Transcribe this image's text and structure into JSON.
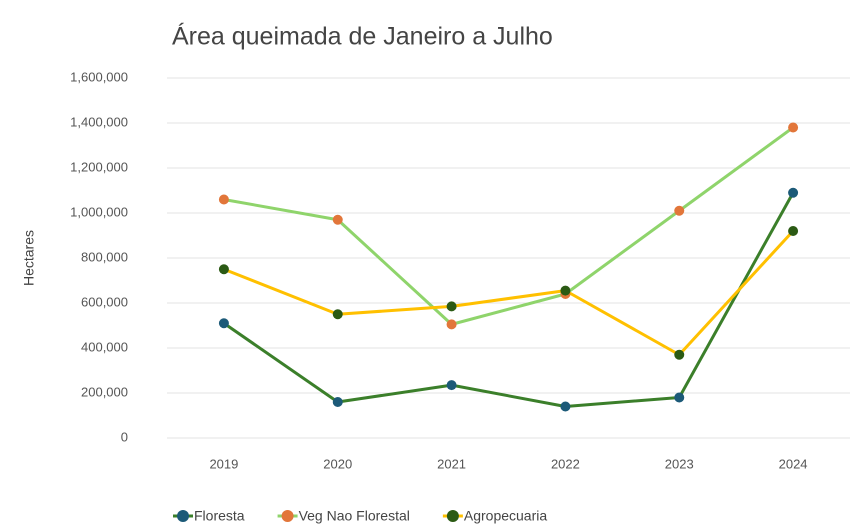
{
  "chart_data": {
    "type": "line",
    "title": "Área queimada de Janeiro a Julho",
    "y_label": "Hectares",
    "categories": [
      "2019",
      "2020",
      "2021",
      "2022",
      "2023",
      "2024"
    ],
    "series": [
      {
        "name": "Floresta",
        "color": "#3b7f2a",
        "marker_color": "#1c5a78",
        "values": [
          510000,
          160000,
          235000,
          140000,
          180000,
          1090000
        ]
      },
      {
        "name": "Veg Nao Florestal",
        "color": "#8fd46b",
        "marker_color": "#e2763a",
        "values": [
          1060000,
          970000,
          505000,
          640000,
          1010000,
          1380000
        ]
      },
      {
        "name": "Agropecuaria",
        "color": "#ffc000",
        "marker_color": "#2b5a14",
        "values": [
          750000,
          550000,
          585000,
          655000,
          370000,
          920000
        ]
      }
    ],
    "ylim": [
      0,
      1600000
    ],
    "yticks": [
      0,
      {
        "value": 200000,
        "label": "200,000"
      },
      {
        "value": 400000,
        "label": "400,000"
      },
      {
        "value": 600000,
        "label": "600,000"
      },
      {
        "value": 800000,
        "label": "800,000"
      },
      {
        "value": 1000000,
        "label": "1,000,000"
      },
      {
        "value": 1200000,
        "label": "1,200,000"
      },
      {
        "value": 1400000,
        "label": "1,400,000"
      },
      {
        "value": 1600000,
        "label": "1,600,000"
      }
    ],
    "grid": true,
    "legend": "bottom"
  }
}
